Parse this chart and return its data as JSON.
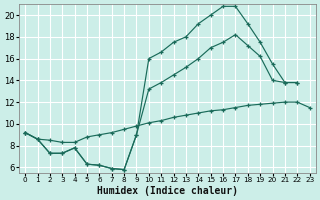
{
  "xlabel": "Humidex (Indice chaleur)",
  "bg_color": "#cceee8",
  "grid_color": "#b0ddd5",
  "line_color": "#1a6b5a",
  "xlim": [
    -0.5,
    23.5
  ],
  "ylim": [
    5.5,
    21.0
  ],
  "xticks": [
    0,
    1,
    2,
    3,
    4,
    5,
    6,
    7,
    8,
    9,
    10,
    11,
    12,
    13,
    14,
    15,
    16,
    17,
    18,
    19,
    20,
    21,
    22,
    23
  ],
  "yticks": [
    6,
    8,
    10,
    12,
    14,
    16,
    18,
    20
  ],
  "line1_x": [
    0,
    1,
    2,
    3,
    4,
    5,
    6,
    7,
    8,
    9,
    10,
    11,
    12,
    13,
    14,
    15,
    16,
    17,
    18,
    19,
    20,
    21,
    22
  ],
  "line1_y": [
    9.2,
    8.6,
    7.3,
    7.3,
    7.8,
    6.3,
    6.2,
    5.9,
    5.8,
    9.0,
    16.0,
    16.6,
    17.5,
    18.0,
    19.2,
    20.0,
    20.8,
    20.8,
    19.2,
    17.5,
    15.5,
    13.8,
    13.8
  ],
  "line2_x": [
    0,
    1,
    2,
    3,
    4,
    5,
    6,
    7,
    8,
    9,
    10,
    11,
    12,
    13,
    14,
    15,
    16,
    17,
    18,
    19,
    20,
    21,
    22,
    23
  ],
  "line2_y": [
    9.2,
    8.6,
    8.5,
    8.3,
    8.3,
    8.8,
    9.0,
    9.2,
    9.5,
    9.8,
    10.1,
    10.3,
    10.6,
    10.8,
    11.0,
    11.2,
    11.3,
    11.5,
    11.7,
    11.8,
    11.9,
    12.0,
    12.0,
    11.5
  ],
  "line3_x": [
    0,
    1,
    2,
    3,
    4,
    5,
    6,
    7,
    8,
    9,
    10,
    11,
    12,
    13,
    14,
    15,
    16,
    17,
    18,
    19,
    20,
    21,
    22,
    23
  ],
  "line3_y": [
    9.2,
    8.6,
    7.3,
    7.3,
    7.8,
    6.3,
    6.2,
    5.9,
    5.8,
    9.0,
    13.2,
    13.8,
    14.5,
    15.2,
    16.0,
    17.0,
    17.5,
    18.2,
    17.2,
    16.2,
    14.0,
    13.8,
    13.8,
    null
  ]
}
